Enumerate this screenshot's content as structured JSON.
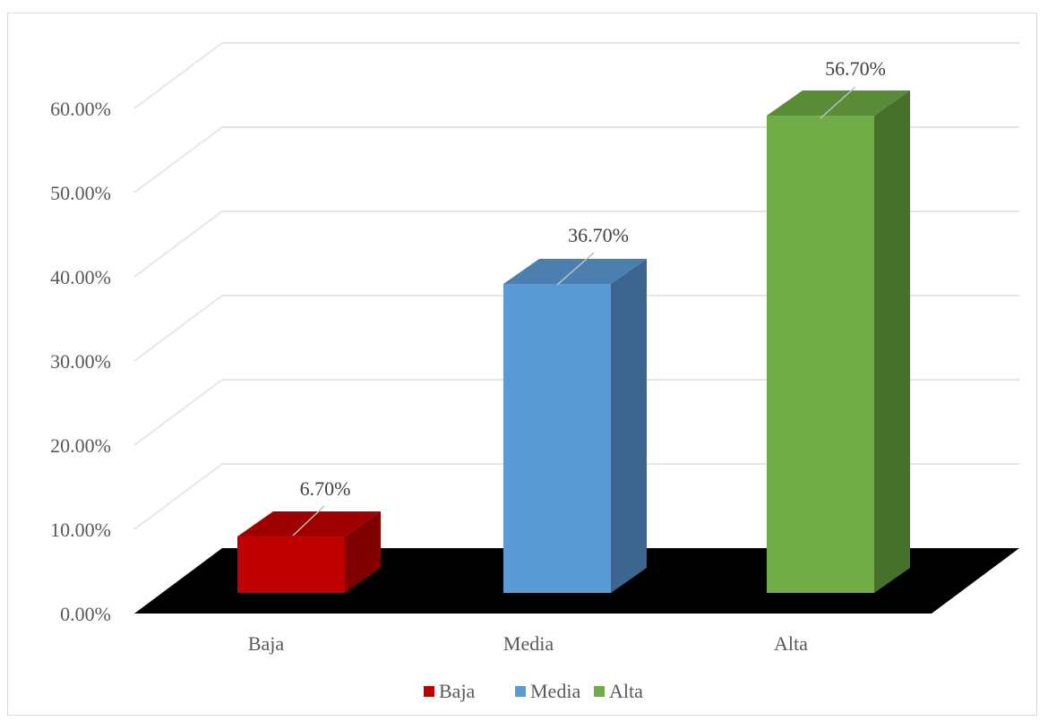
{
  "chart_data": {
    "type": "bar",
    "categories": [
      "Baja",
      "Media",
      "Alta"
    ],
    "series": [
      {
        "name": "Baja",
        "values": [
          6.7,
          null,
          null
        ]
      },
      {
        "name": "Media",
        "values": [
          null,
          36.7,
          null
        ]
      },
      {
        "name": "Alta",
        "values": [
          null,
          null,
          56.7
        ]
      }
    ],
    "values": [
      6.7,
      36.7,
      56.7
    ],
    "data_labels": [
      "6.70%",
      "36.70%",
      "56.70%"
    ],
    "y_ticks": [
      "0.00%",
      "10.00%",
      "20.00%",
      "30.00%",
      "40.00%",
      "50.00%",
      "60.00%"
    ],
    "ylim": [
      0,
      60
    ],
    "grid": true,
    "legend": {
      "position": "bottom",
      "entries": [
        "Baja",
        "Media",
        "Alta"
      ]
    },
    "three_d": true,
    "colors": {
      "Baja": {
        "front": "#c00000",
        "top": "#a00000",
        "side": "#7f0000"
      },
      "Media": {
        "front": "#5b9bd5",
        "top": "#4a7fb0",
        "side": "#3c6690"
      },
      "Alta": {
        "front": "#70ad47",
        "top": "#5a8c38",
        "side": "#46702b"
      },
      "floor": "#000000",
      "grid": "#e6e6e6"
    }
  }
}
